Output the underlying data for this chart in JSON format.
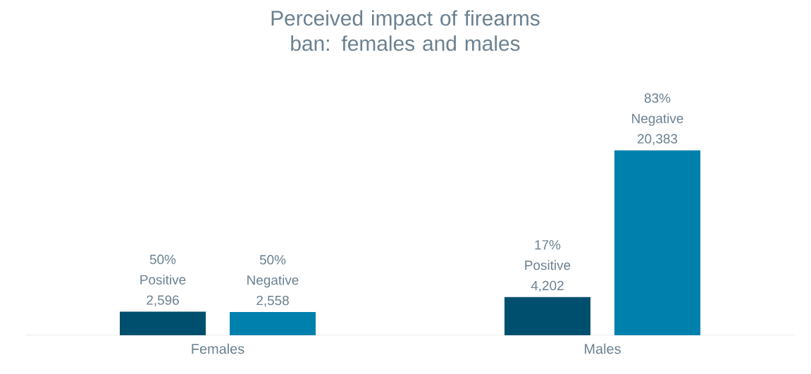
{
  "chart_data": {
    "type": "bar",
    "title": "Perceived impact of firearms ban: females and males",
    "categories": [
      "Females",
      "Males"
    ],
    "series": [
      {
        "color": "#004f6e",
        "values": [
          2596,
          4202
        ],
        "value_labels": [
          "50% Positive 2,596",
          "17% Positive 4,202"
        ]
      },
      {
        "color": "#0080ad",
        "values": [
          2558,
          20383
        ],
        "value_labels": [
          "50% Negative 2,558",
          "83% Negative 20,383"
        ]
      }
    ],
    "legend": false
  }
}
